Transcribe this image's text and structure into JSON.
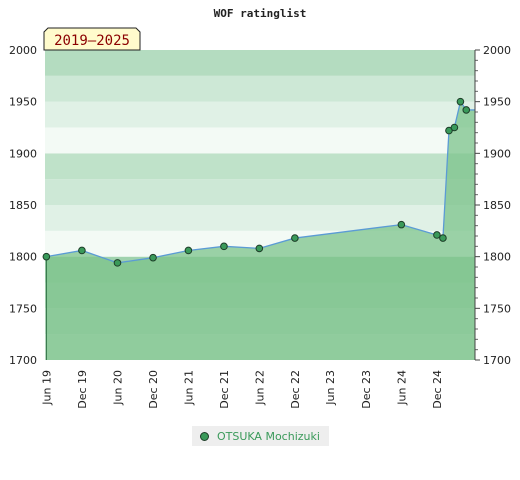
{
  "chart_data": {
    "type": "area",
    "title": "WOF ratinglist",
    "range_label": "2019–2025",
    "ylim": [
      1700,
      2000
    ],
    "yticks": [
      1700,
      1750,
      1800,
      1850,
      1900,
      1950,
      2000
    ],
    "xlim": [
      "2019-05-25",
      "2025-06-15"
    ],
    "xticks": [
      {
        "label": "Jun 19",
        "date": "2019-06-01"
      },
      {
        "label": "Dec 19",
        "date": "2019-12-01"
      },
      {
        "label": "Jun 20",
        "date": "2020-06-01"
      },
      {
        "label": "Dec 20",
        "date": "2020-12-01"
      },
      {
        "label": "Jun 21",
        "date": "2021-06-01"
      },
      {
        "label": "Dec 21",
        "date": "2021-12-01"
      },
      {
        "label": "Jun 22",
        "date": "2022-06-01"
      },
      {
        "label": "Dec 22",
        "date": "2022-12-01"
      },
      {
        "label": "Jun 23",
        "date": "2023-06-01"
      },
      {
        "label": "Dec 23",
        "date": "2023-12-01"
      },
      {
        "label": "Jun 24",
        "date": "2024-06-01"
      },
      {
        "label": "Dec 24",
        "date": "2024-12-01"
      }
    ],
    "series": [
      {
        "name": "OTSUKA Mochizuki",
        "points": [
          {
            "x": "2019-06-01",
            "y": 1800
          },
          {
            "x": "2019-12-01",
            "y": 1806
          },
          {
            "x": "2020-06-01",
            "y": 1794
          },
          {
            "x": "2020-12-01",
            "y": 1799
          },
          {
            "x": "2021-06-01",
            "y": 1806
          },
          {
            "x": "2021-12-01",
            "y": 1810
          },
          {
            "x": "2022-06-01",
            "y": 1808
          },
          {
            "x": "2022-12-01",
            "y": 1818
          },
          {
            "x": "2024-06-01",
            "y": 1831
          },
          {
            "x": "2024-12-01",
            "y": 1821
          },
          {
            "x": "2025-01-01",
            "y": 1818
          },
          {
            "x": "2025-02-01",
            "y": 1922
          },
          {
            "x": "2025-03-01",
            "y": 1925
          },
          {
            "x": "2025-04-01",
            "y": 1950
          },
          {
            "x": "2025-05-01",
            "y": 1942
          }
        ]
      }
    ],
    "colors": {
      "line": "#5b9bd5",
      "fill": "#7cc38b",
      "marker": "#3a9a5a",
      "marker_stroke": "#1d3d28",
      "legend_text": "#3a9a5a"
    },
    "legend_position": "bottom-center",
    "grid": true
  }
}
